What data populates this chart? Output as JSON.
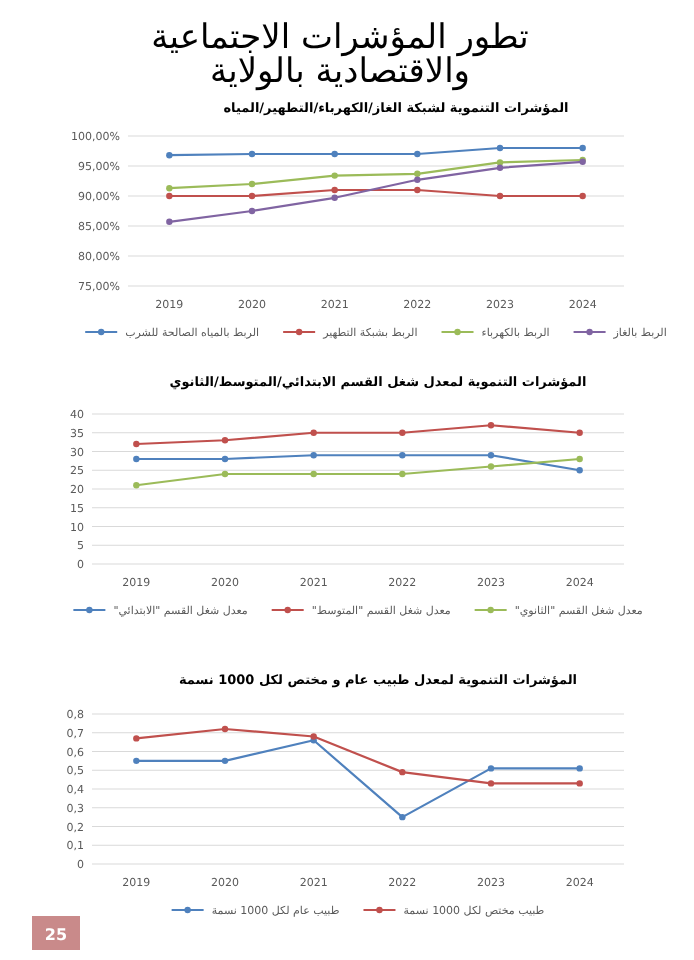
{
  "chart_data": [
    {
      "type": "other",
      "title": "تطور المؤشرات الاجتماعية والاقتصادية بالولاية",
      "annotations": [
        "25"
      ]
    },
    {
      "type": "line",
      "title": "المؤشرات التنموية لشبكة الغاز/الكهرباء/التطهير/المياه",
      "categories": [
        "2019",
        "2020",
        "2021",
        "2022",
        "2023",
        "2024"
      ],
      "ylim": [
        75,
        100
      ],
      "yticks": [
        {
          "value": 75,
          "label": "75,00%"
        },
        {
          "value": 80,
          "label": "80,00%"
        },
        {
          "value": 85,
          "label": "85,00%"
        },
        {
          "value": 90,
          "label": "90,00%"
        },
        {
          "value": 95,
          "label": "95,00%"
        },
        {
          "value": 100,
          "label": "100,00%"
        }
      ],
      "grid": "y",
      "legend": "bottom",
      "marker": "circle",
      "series": [
        {
          "name": "الربط بالمياه الصالحة للشرب",
          "color": "#4f81bd",
          "values": [
            96.8,
            97,
            97,
            97,
            98,
            98
          ]
        },
        {
          "name": "الربط بشبكة التطهير",
          "color": "#c0504d",
          "values": [
            90,
            90,
            91,
            91,
            90,
            90
          ]
        },
        {
          "name": "الربط بالكهرباء",
          "color": "#9bbb59",
          "values": [
            91.3,
            92,
            93.4,
            93.7,
            95.6,
            96
          ]
        },
        {
          "name": "الربط بالغاز",
          "color": "#8064a2",
          "values": [
            85.7,
            87.5,
            89.7,
            92.7,
            94.7,
            95.7
          ]
        }
      ]
    },
    {
      "type": "line",
      "title": "المؤشرات التنموية لمعدل شغل القسم الابتدائي/المتوسط/الثانوي",
      "categories": [
        "2019",
        "2020",
        "2021",
        "2022",
        "2023",
        "2024"
      ],
      "ylim": [
        0,
        40
      ],
      "yticks": [
        0,
        5,
        10,
        15,
        20,
        25,
        30,
        35,
        40
      ],
      "grid": "y",
      "legend": "bottom",
      "marker": "circle",
      "series": [
        {
          "name": "معدل شغل القسم \"الابتدائي\"",
          "color": "#4f81bd",
          "values": [
            28,
            28,
            29,
            29,
            29,
            25
          ]
        },
        {
          "name": "معدل شغل القسم \"المتوسط\"",
          "color": "#c0504d",
          "values": [
            32,
            33,
            35,
            35,
            37,
            35
          ]
        },
        {
          "name": "معدل شغل القسم \"الثانوي\"",
          "color": "#9bbb59",
          "values": [
            21,
            24,
            24,
            24,
            26,
            28
          ]
        }
      ]
    },
    {
      "type": "line",
      "title": "المؤشرات التنموية لمعدل طبيب عام و مختص لكل 1000 نسمة",
      "categories": [
        "2019",
        "2020",
        "2021",
        "2022",
        "2023",
        "2024"
      ],
      "ylim": [
        0,
        0.8
      ],
      "yticks": [
        0,
        {
          "value": 0.1,
          "label": "0,1"
        },
        {
          "value": 0.2,
          "label": "0,2"
        },
        {
          "value": 0.3,
          "label": "0,3"
        },
        {
          "value": 0.4,
          "label": "0,4"
        },
        {
          "value": 0.5,
          "label": "0,5"
        },
        {
          "value": 0.6,
          "label": "0,6"
        },
        {
          "value": 0.7,
          "label": "0,7"
        },
        {
          "value": 0.8,
          "label": "0,8"
        }
      ],
      "grid": "y",
      "legend": "bottom",
      "marker": "circle",
      "series": [
        {
          "name": "طبيب عام لكل 1000 نسمة",
          "color": "#4f81bd",
          "values": [
            0.55,
            0.55,
            0.66,
            0.25,
            0.51,
            0.51
          ]
        },
        {
          "name": "طبيب مختص لكل 1000 نسمة",
          "color": "#c0504d",
          "values": [
            0.67,
            0.72,
            0.68,
            0.49,
            0.43,
            0.43
          ]
        }
      ]
    }
  ]
}
